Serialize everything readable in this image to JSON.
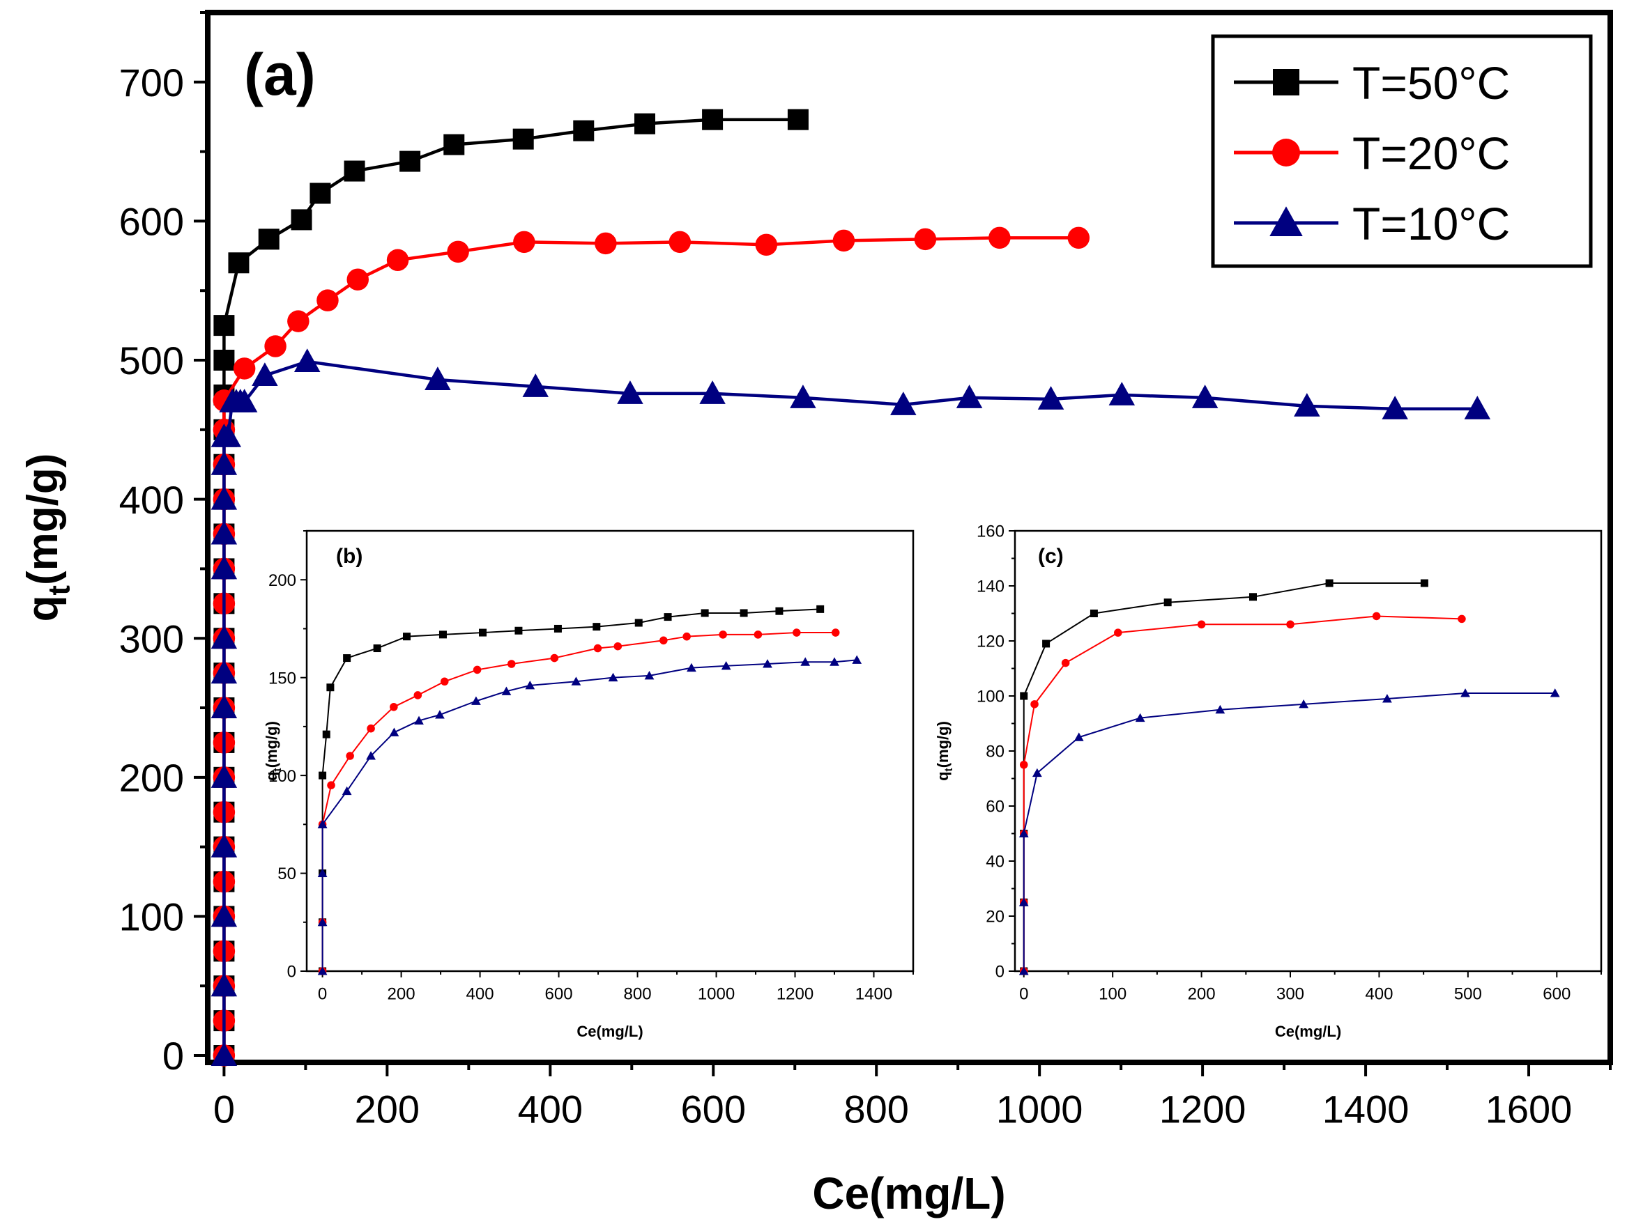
{
  "colors": {
    "t50": "#000000",
    "t20": "#ff0000",
    "t10": "#000080",
    "frame": "#000000"
  },
  "chart_data": [
    {
      "id": "a",
      "type": "line",
      "panel_label": "(a)",
      "xlabel": "Ce(mg/L)",
      "ylabel_main": "q",
      "ylabel_sub": "t",
      "ylabel_rest": "(mg/g)",
      "xlim": [
        -20,
        1700
      ],
      "ylim": [
        -5,
        750
      ],
      "xticks": [
        0,
        200,
        400,
        600,
        800,
        1000,
        1200,
        1400,
        1600
      ],
      "yticks": [
        0,
        100,
        200,
        300,
        400,
        500,
        600,
        700
      ],
      "legend_position": "top-right",
      "series": [
        {
          "name": "T=50°C",
          "color_key": "t50",
          "marker": "square",
          "x": [
            0,
            0,
            0,
            0,
            0,
            0,
            0,
            0,
            0,
            0,
            0,
            0,
            0,
            0,
            0,
            0,
            0,
            0,
            0,
            0,
            0,
            0,
            18,
            55,
            95,
            118,
            160,
            228,
            282,
            367,
            441,
            516,
            599,
            704
          ],
          "y": [
            0,
            25,
            50,
            75,
            100,
            125,
            150,
            175,
            200,
            225,
            250,
            275,
            300,
            325,
            350,
            375,
            400,
            425,
            450,
            475,
            500,
            525,
            570,
            587,
            601,
            620,
            636,
            643,
            655,
            659,
            665,
            670,
            673,
            673
          ]
        },
        {
          "name": "T=20°C",
          "color_key": "t20",
          "marker": "circle",
          "x": [
            0,
            0,
            0,
            0,
            0,
            0,
            0,
            0,
            0,
            0,
            0,
            0,
            0,
            0,
            0,
            0,
            0,
            0,
            0,
            0,
            0,
            25,
            63,
            91,
            127,
            164,
            213,
            287,
            368,
            468,
            559,
            665,
            760,
            860,
            951,
            1048
          ],
          "y": [
            0,
            25,
            50,
            75,
            100,
            125,
            150,
            175,
            200,
            225,
            250,
            275,
            300,
            325,
            350,
            375,
            400,
            425,
            450,
            471,
            471,
            494,
            510,
            528,
            543,
            558,
            572,
            578,
            585,
            584,
            585,
            583,
            586,
            587,
            588,
            588
          ]
        },
        {
          "name": "T=10°C",
          "color_key": "t10",
          "marker": "triangle",
          "x": [
            0,
            0,
            0,
            0,
            0,
            0,
            0,
            0,
            0,
            0,
            0,
            0,
            0,
            5,
            10,
            15,
            20,
            25,
            50,
            102,
            262,
            382,
            498,
            599,
            710,
            833,
            914,
            1014,
            1101,
            1203,
            1328,
            1436,
            1537
          ],
          "y": [
            0,
            50,
            100,
            150,
            200,
            250,
            275,
            300,
            350,
            375,
            400,
            425,
            445,
            445,
            470,
            470,
            470,
            470,
            489,
            499,
            486,
            481,
            476,
            476,
            473,
            468,
            473,
            472,
            475,
            473,
            467,
            465,
            465
          ]
        }
      ]
    },
    {
      "id": "b",
      "type": "line",
      "panel_label": "(b)",
      "xlabel": "Ce(mg/L)",
      "ylabel_main": "q",
      "ylabel_sub": "t",
      "ylabel_rest": "(mg/g)",
      "xlim": [
        -40,
        1500
      ],
      "ylim": [
        0,
        225
      ],
      "xticks": [
        0,
        200,
        400,
        600,
        800,
        1000,
        1200,
        1400
      ],
      "yticks": [
        0,
        50,
        100,
        150,
        200
      ],
      "series": [
        {
          "name": "T=50°C",
          "color_key": "t50",
          "marker": "square",
          "x": [
            0,
            0,
            0,
            0,
            10,
            20,
            62,
            139,
            214,
            306,
            407,
            498,
            598,
            696,
            803,
            877,
            971,
            1070,
            1160,
            1264
          ],
          "y": [
            0,
            25,
            50,
            100,
            121,
            145,
            160,
            165,
            171,
            172,
            173,
            174,
            175,
            176,
            178,
            181,
            183,
            183,
            184,
            185
          ]
        },
        {
          "name": "T=20°C",
          "color_key": "t20",
          "marker": "circle",
          "x": [
            0,
            0,
            0,
            22,
            70,
            123,
            181,
            242,
            310,
            393,
            480,
            589,
            699,
            750,
            866,
            925,
            1017,
            1106,
            1204,
            1303
          ],
          "y": [
            0,
            25,
            75,
            95,
            110,
            124,
            135,
            141,
            148,
            154,
            157,
            160,
            165,
            166,
            169,
            171,
            172,
            172,
            173,
            173
          ]
        },
        {
          "name": "T=10°C",
          "color_key": "t10",
          "marker": "triangle",
          "x": [
            0,
            0,
            0,
            0,
            0,
            62,
            123,
            182,
            245,
            298,
            390,
            467,
            527,
            644,
            738,
            830,
            937,
            1025,
            1130,
            1226,
            1300,
            1357
          ],
          "y": [
            0,
            25,
            50,
            75,
            75,
            92,
            110,
            122,
            128,
            131,
            138,
            143,
            146,
            148,
            150,
            151,
            155,
            156,
            157,
            158,
            158,
            159
          ]
        }
      ]
    },
    {
      "id": "c",
      "type": "line",
      "panel_label": "(c)",
      "xlabel": "Ce(mg/L)",
      "ylabel_main": "q",
      "ylabel_sub": "t",
      "ylabel_rest": "(mg/g)",
      "xlim": [
        -10,
        650
      ],
      "ylim": [
        0,
        160
      ],
      "xticks": [
        0,
        100,
        200,
        300,
        400,
        500,
        600
      ],
      "yticks": [
        0,
        20,
        40,
        60,
        80,
        100,
        120,
        140,
        160
      ],
      "series": [
        {
          "name": "T=50°C",
          "color_key": "t50",
          "marker": "square",
          "x": [
            0,
            0,
            0,
            0,
            25,
            79,
            162,
            258,
            344,
            451
          ],
          "y": [
            0,
            25,
            50,
            100,
            119,
            130,
            134,
            136,
            141,
            141
          ]
        },
        {
          "name": "T=20°C",
          "color_key": "t20",
          "marker": "circle",
          "x": [
            0,
            0,
            0,
            0,
            12,
            47,
            106,
            200,
            300,
            397,
            493
          ],
          "y": [
            0,
            25,
            50,
            75,
            97,
            112,
            123,
            126,
            126,
            129,
            128
          ]
        },
        {
          "name": "T=10°C",
          "color_key": "t10",
          "marker": "triangle",
          "x": [
            0,
            0,
            0,
            15,
            62,
            131,
            221,
            315,
            409,
            497,
            598
          ],
          "y": [
            0,
            25,
            50,
            72,
            85,
            92,
            95,
            97,
            99,
            101,
            101
          ]
        }
      ]
    }
  ]
}
